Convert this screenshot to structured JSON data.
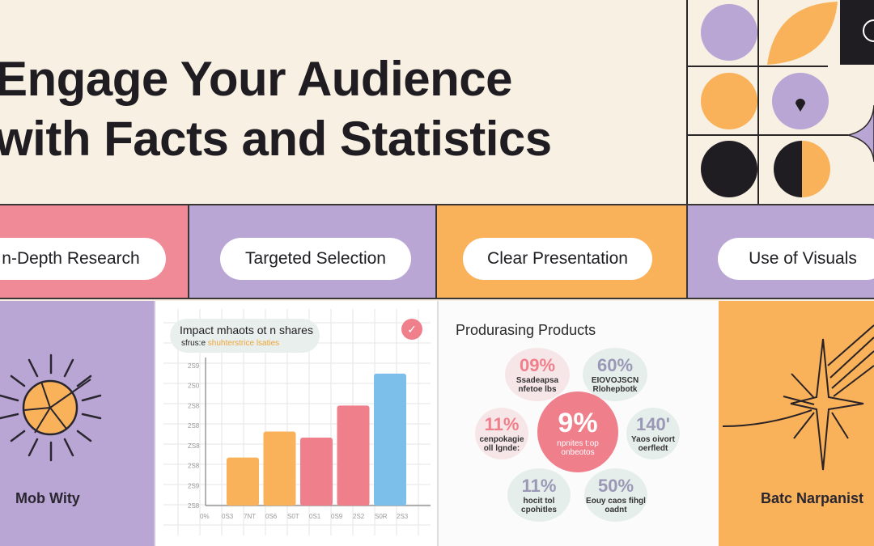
{
  "header": {
    "line1": "Engage Your Audience",
    "line2": "with Facts and Statistics"
  },
  "pills": [
    "n-Depth Research",
    "Targeted Selection",
    "Clear Presentation",
    "Use of Visuals"
  ],
  "left_panel": {
    "label": "Mob Wity",
    "icon": "sun-icon"
  },
  "right_panel": {
    "label": "Batc Narpanist",
    "icon": "sparkle-star-icon"
  },
  "chart_data": {
    "type": "bar",
    "title": "Impact mhaots ot n shares",
    "subtitle_prefix": "sfrus:e",
    "subtitle_highlight": "shuhterstrice lsaties",
    "y_tick_labels": [
      "2S8",
      "2S9",
      "2S8",
      "ZS8",
      "2S8",
      "2S8",
      "2S0",
      "2S9"
    ],
    "x_tick_labels": [
      "0%",
      "0S3",
      "7NT",
      "0S6",
      "S0T",
      "0S1",
      "0S9",
      "2S2",
      "S0R",
      "2S3"
    ],
    "ylim": [
      0,
      7
    ],
    "grid": true,
    "values": [
      2.4,
      3.7,
      3.4,
      5.0,
      6.6
    ],
    "colors": [
      "#f9b25a",
      "#f9b25a",
      "#f07f8c",
      "#f07f8c",
      "#7bbfea"
    ]
  },
  "products": {
    "title": "Produrasing Products",
    "center": {
      "value": "9%",
      "text": "npnites t:op onbeotos"
    },
    "bubbles": [
      {
        "value": "09%",
        "text": "Ssadeapsa nfetoe lbs"
      },
      {
        "value": "60%",
        "text": "EIOVOJSCN Rlohepbotk"
      },
      {
        "value": "11%",
        "text": "cenpokagie oll lgnde:"
      },
      {
        "value": "140'",
        "text": "Yaos oivort oerfledt"
      },
      {
        "value": "11%",
        "text": "hocit tol cpohitles"
      },
      {
        "value": "50%",
        "text": "Eouy caos fihgl oadnt"
      }
    ]
  },
  "colors": {
    "cream": "#f8f0e3",
    "pink": "#f08a96",
    "purple": "#b9a6d4",
    "orange": "#f9b25a",
    "dark": "#1f1d22"
  }
}
